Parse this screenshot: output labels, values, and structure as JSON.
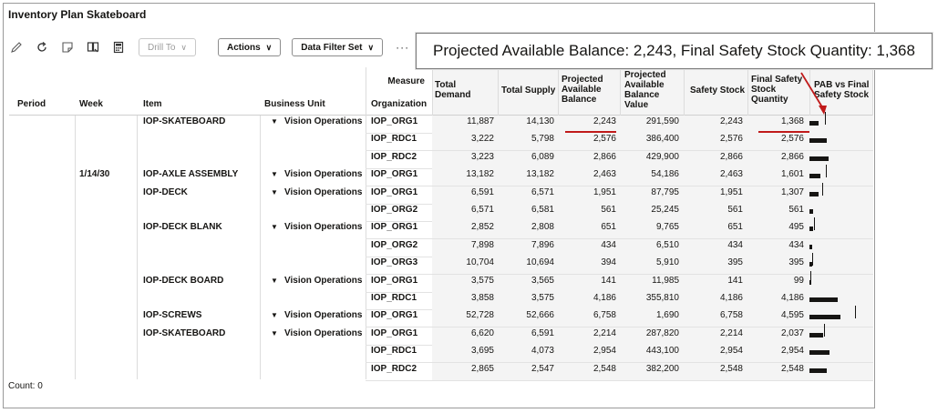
{
  "page": {
    "title": "Inventory Plan Skateboard",
    "count_label": "Count: 0"
  },
  "toolbar": {
    "icons": [
      "pencil-icon",
      "refresh-icon",
      "note-icon",
      "book-icon",
      "calculator-icon"
    ],
    "drill_to": "Drill To",
    "actions": "Actions",
    "data_filter_set": "Data Filter Set",
    "more": "···"
  },
  "callout": {
    "text": "Projected Available Balance: 2,243, Final Safety Stock Quantity: 1,368"
  },
  "columns": {
    "period": "Period",
    "week": "Week",
    "item": "Item",
    "business_unit": "Business Unit",
    "measure": "Measure",
    "organization": "Organization",
    "total_demand": "Total Demand",
    "total_supply": "Total Supply",
    "pab": "Projected Available Balance",
    "pab_value": "Projected Available Balance Value",
    "safety_stock": "Safety Stock",
    "final_safety": "Final Safety Stock Quantity",
    "pab_vs_final": "PAB vs Final Safety Stock"
  },
  "rows": [
    {
      "week": "",
      "item": "IOP-SKATEBOARD",
      "bu": "Vision Operations",
      "org": "IOP_ORG1",
      "demand": "11,887",
      "supply": "14,130",
      "pab": "2,243",
      "pab_value": "291,590",
      "safety": "2,243",
      "final": "1,368",
      "pab_num": 2243,
      "final_num": 1368
    },
    {
      "week": "",
      "item": "",
      "bu": "",
      "org": "IOP_RDC1",
      "demand": "3,222",
      "supply": "5,798",
      "pab": "2,576",
      "pab_value": "386,400",
      "safety": "2,576",
      "final": "2,576",
      "pab_num": 2576,
      "final_num": 2576
    },
    {
      "week": "",
      "item": "",
      "bu": "",
      "org": "IOP_RDC2",
      "demand": "3,223",
      "supply": "6,089",
      "pab": "2,866",
      "pab_value": "429,900",
      "safety": "2,866",
      "final": "2,866",
      "pab_num": 2866,
      "final_num": 2866
    },
    {
      "week": "1/14/30",
      "item": "IOP-AXLE ASSEMBLY",
      "bu": "Vision Operations",
      "org": "IOP_ORG1",
      "demand": "13,182",
      "supply": "13,182",
      "pab": "2,463",
      "pab_value": "54,186",
      "safety": "2,463",
      "final": "1,601",
      "pab_num": 2463,
      "final_num": 1601
    },
    {
      "week": "",
      "item": "IOP-DECK",
      "bu": "Vision Operations",
      "org": "IOP_ORG1",
      "demand": "6,591",
      "supply": "6,571",
      "pab": "1,951",
      "pab_value": "87,795",
      "safety": "1,951",
      "final": "1,307",
      "pab_num": 1951,
      "final_num": 1307
    },
    {
      "week": "",
      "item": "",
      "bu": "",
      "org": "IOP_ORG2",
      "demand": "6,571",
      "supply": "6,581",
      "pab": "561",
      "pab_value": "25,245",
      "safety": "561",
      "final": "561",
      "pab_num": 561,
      "final_num": 561
    },
    {
      "week": "",
      "item": "IOP-DECK BLANK",
      "bu": "Vision Operations",
      "org": "IOP_ORG1",
      "demand": "2,852",
      "supply": "2,808",
      "pab": "651",
      "pab_value": "9,765",
      "safety": "651",
      "final": "495",
      "pab_num": 651,
      "final_num": 495
    },
    {
      "week": "",
      "item": "",
      "bu": "",
      "org": "IOP_ORG2",
      "demand": "7,898",
      "supply": "7,896",
      "pab": "434",
      "pab_value": "6,510",
      "safety": "434",
      "final": "434",
      "pab_num": 434,
      "final_num": 434
    },
    {
      "week": "",
      "item": "",
      "bu": "",
      "org": "IOP_ORG3",
      "demand": "10,704",
      "supply": "10,694",
      "pab": "394",
      "pab_value": "5,910",
      "safety": "395",
      "final": "395",
      "pab_num": 394,
      "final_num": 395
    },
    {
      "week": "",
      "item": "IOP-DECK BOARD",
      "bu": "Vision Operations",
      "org": "IOP_ORG1",
      "demand": "3,575",
      "supply": "3,565",
      "pab": "141",
      "pab_value": "11,985",
      "safety": "141",
      "final": "99",
      "pab_num": 141,
      "final_num": 99
    },
    {
      "week": "",
      "item": "",
      "bu": "",
      "org": "IOP_RDC1",
      "demand": "3,858",
      "supply": "3,575",
      "pab": "4,186",
      "pab_value": "355,810",
      "safety": "4,186",
      "final": "4,186",
      "pab_num": 4186,
      "final_num": 4186
    },
    {
      "week": "",
      "item": "IOP-SCREWS",
      "bu": "Vision Operations",
      "org": "IOP_ORG1",
      "demand": "52,728",
      "supply": "52,666",
      "pab": "6,758",
      "pab_value": "1,690",
      "safety": "6,758",
      "final": "4,595",
      "pab_num": 6758,
      "final_num": 4595
    },
    {
      "week": "",
      "item": "IOP-SKATEBOARD",
      "bu": "Vision Operations",
      "org": "IOP_ORG1",
      "demand": "6,620",
      "supply": "6,591",
      "pab": "2,214",
      "pab_value": "287,820",
      "safety": "2,214",
      "final": "2,037",
      "pab_num": 2214,
      "final_num": 2037
    },
    {
      "week": "",
      "item": "",
      "bu": "",
      "org": "IOP_RDC1",
      "demand": "3,695",
      "supply": "4,073",
      "pab": "2,954",
      "pab_value": "443,100",
      "safety": "2,954",
      "final": "2,954",
      "pab_num": 2954,
      "final_num": 2954
    },
    {
      "week": "",
      "item": "",
      "bu": "",
      "org": "IOP_RDC2",
      "demand": "2,865",
      "supply": "2,547",
      "pab": "2,548",
      "pab_value": "382,200",
      "safety": "2,548",
      "final": "2,548",
      "pab_num": 2548,
      "final_num": 2548
    }
  ],
  "highlight_color": "#c01a1a"
}
